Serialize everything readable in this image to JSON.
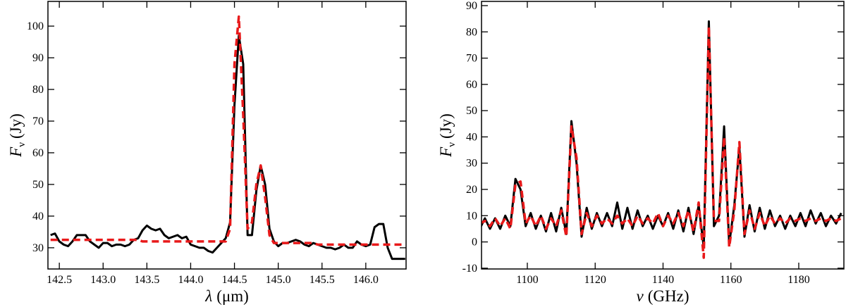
{
  "chart_data": [
    {
      "type": "line",
      "xlabel": [
        "λ",
        "(μm)"
      ],
      "ylabel": [
        "F",
        "ν",
        "(Jy)"
      ],
      "xlim": [
        142.37,
        146.46
      ],
      "ylim": [
        23.3,
        107.8
      ],
      "xticks": [
        142.5,
        {
          "value": 143,
          "label": "143.0"
        },
        143.5,
        {
          "value": 144,
          "label": "144.0"
        },
        144.5,
        {
          "value": 145,
          "label": "145.0"
        },
        145.5,
        {
          "value": 146,
          "label": "146.0"
        }
      ],
      "yticks": [
        30,
        40,
        50,
        60,
        70,
        80,
        90,
        100
      ],
      "x": [
        142.4,
        142.45,
        142.5,
        142.55,
        142.6,
        142.65,
        142.7,
        142.75,
        142.8,
        142.85,
        142.9,
        142.95,
        143.0,
        143.05,
        143.1,
        143.15,
        143.2,
        143.25,
        143.3,
        143.35,
        143.4,
        143.45,
        143.5,
        143.55,
        143.6,
        143.65,
        143.7,
        143.75,
        143.8,
        143.85,
        143.9,
        143.95,
        144.0,
        144.05,
        144.1,
        144.15,
        144.2,
        144.25,
        144.3,
        144.35,
        144.4,
        144.45,
        144.5,
        144.55,
        144.6,
        144.65,
        144.7,
        144.75,
        144.8,
        144.85,
        144.9,
        144.95,
        145.0,
        145.05,
        145.1,
        145.15,
        145.2,
        145.25,
        145.3,
        145.35,
        145.4,
        145.45,
        145.5,
        145.55,
        145.6,
        145.65,
        145.7,
        145.75,
        145.8,
        145.85,
        145.9,
        145.95,
        146.0,
        146.05,
        146.1,
        146.15,
        146.2,
        146.25,
        146.3,
        146.35,
        146.4,
        146.45
      ],
      "series": [
        {
          "color": "#000000",
          "style": "solid",
          "values": [
            34,
            34.5,
            32,
            31,
            30.5,
            32,
            34,
            34,
            34,
            32,
            31,
            30,
            31.5,
            31.5,
            30.5,
            31,
            31,
            30.5,
            31,
            32.5,
            33,
            35.5,
            37,
            36,
            35.5,
            36,
            34,
            33,
            33.5,
            34,
            33,
            33.5,
            31,
            30.5,
            30,
            30,
            29,
            28.5,
            30,
            31.5,
            33,
            38,
            75,
            97,
            88,
            34,
            34,
            48,
            56,
            50,
            36,
            32,
            30.5,
            31.5,
            31.5,
            32,
            32.5,
            32,
            31,
            30.5,
            31.5,
            31,
            30.5,
            30,
            30,
            29.5,
            30,
            31,
            30,
            30,
            32,
            31,
            30.5,
            31,
            36.5,
            37.5,
            37.5,
            30,
            26.5,
            26.5,
            26.5,
            26.5
          ]
        },
        {
          "color": "#e8191a",
          "style": "dashed",
          "values": [
            32.5,
            32.5,
            32.5,
            32.5,
            32.5,
            32.5,
            32.5,
            32.5,
            32.5,
            32.5,
            32.5,
            32.5,
            32.5,
            32.5,
            32.5,
            32.5,
            32.5,
            32.5,
            32.5,
            32.5,
            32.5,
            32,
            32,
            32,
            32,
            32,
            32,
            32,
            32,
            32,
            32,
            32,
            32,
            32,
            32,
            32,
            32,
            32,
            32,
            32,
            32,
            36,
            88,
            103,
            72,
            36,
            38,
            50,
            56,
            46,
            34,
            31.5,
            31.5,
            31.5,
            31.5,
            31.5,
            31.5,
            31.5,
            31.5,
            31.5,
            31.5,
            31,
            31,
            31,
            31,
            31,
            31,
            31,
            31,
            31,
            31,
            31,
            31,
            31,
            31,
            31,
            31,
            31,
            31,
            31,
            31,
            31
          ]
        }
      ]
    },
    {
      "type": "line",
      "xlabel": [
        "ν",
        "(GHz)"
      ],
      "ylabel": [
        "F",
        "ν",
        "(Jy)"
      ],
      "xlim": [
        1086.5,
        1193.3
      ],
      "ylim": [
        -10.3,
        91.6
      ],
      "xticks": [
        1100,
        1120,
        1140,
        1160,
        1180
      ],
      "yticks": [
        -10,
        0,
        10,
        20,
        30,
        40,
        50,
        60,
        70,
        80,
        90
      ],
      "x": [
        1086,
        1087.5,
        1089,
        1090.5,
        1092,
        1093.5,
        1095,
        1096.5,
        1098,
        1099.5,
        1101,
        1102.5,
        1104,
        1105.5,
        1107,
        1108.5,
        1110,
        1111.5,
        1113,
        1114.5,
        1116,
        1117.5,
        1119,
        1120.5,
        1122,
        1123.5,
        1125,
        1126.5,
        1128,
        1129.5,
        1131,
        1132.5,
        1134,
        1135.5,
        1137,
        1138.5,
        1140,
        1141.5,
        1143,
        1144.5,
        1146,
        1147.5,
        1149,
        1150.5,
        1152,
        1153.5,
        1155,
        1156.5,
        1158,
        1159.5,
        1161,
        1162.5,
        1164,
        1165.5,
        1167,
        1168.5,
        1170,
        1171.5,
        1173,
        1174.5,
        1176,
        1177.5,
        1179,
        1180.5,
        1182,
        1183.5,
        1185,
        1186.5,
        1188,
        1189.5,
        1191,
        1192.5
      ],
      "series": [
        {
          "color": "#000000",
          "style": "solid",
          "values": [
            5,
            9,
            5,
            9,
            5,
            10,
            6,
            24,
            20,
            6,
            11,
            5,
            10,
            4,
            11,
            4,
            13,
            3,
            46,
            30,
            2,
            13,
            5,
            11,
            6,
            11,
            6,
            15,
            5,
            13,
            5,
            12,
            6,
            10,
            5,
            10,
            6,
            11,
            5,
            12,
            4,
            13,
            3,
            14,
            -2,
            84,
            6,
            10,
            44,
            -1,
            14,
            36,
            2,
            14,
            4,
            13,
            5,
            12,
            6,
            10,
            5,
            10,
            6,
            11,
            6,
            12,
            7,
            11,
            6,
            10,
            7,
            11
          ]
        },
        {
          "color": "#e8191a",
          "style": "dashed",
          "values": [
            7,
            8,
            6,
            9,
            6,
            9,
            5,
            22,
            23,
            7,
            10,
            6,
            10,
            5,
            9,
            6,
            12,
            2,
            44,
            32,
            3,
            11,
            6,
            10,
            7,
            9,
            7,
            10,
            7,
            9,
            6,
            10,
            7,
            9,
            7,
            11,
            6,
            10,
            7,
            11,
            6,
            12,
            4,
            15,
            -6,
            82,
            8,
            8,
            40,
            -2,
            12,
            38,
            3,
            12,
            5,
            11,
            6,
            10,
            7,
            9,
            7,
            9,
            8,
            9,
            8,
            9,
            8,
            9,
            8,
            9,
            8,
            9
          ]
        }
      ]
    }
  ]
}
